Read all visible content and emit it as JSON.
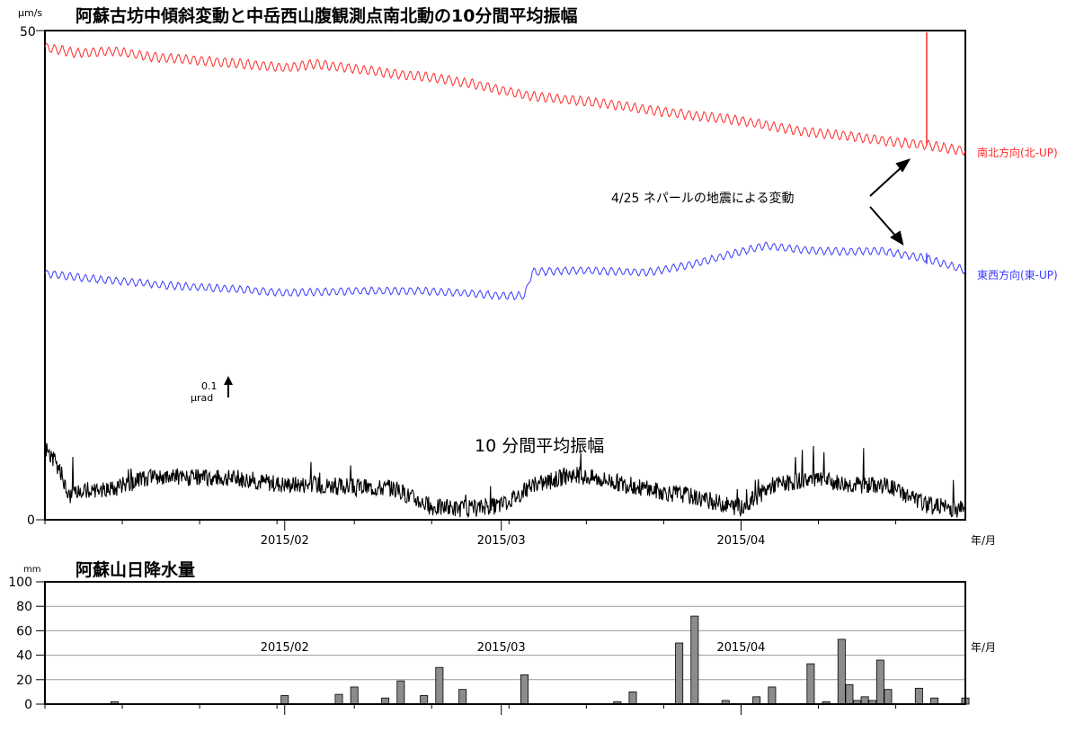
{
  "colors": {
    "ns": "#ff2a2a",
    "ew": "#3a3aff",
    "amp": "#000000",
    "bar_fill": "#8c8c8c",
    "grid": "#999999"
  },
  "chart_data": [
    {
      "type": "line",
      "title": "阿蘇古坊中傾斜変動と中岳西山腹観測点南北動の10分間平均振幅",
      "unit_label": "μm/s",
      "ylim": [
        0,
        50
      ],
      "y_ticks": [
        "50",
        "0"
      ],
      "x_ticks": [
        "2015/02",
        "2015/03",
        "2015/04"
      ],
      "x_unit": "年/月",
      "x_range": [
        "2015-01-01",
        "2015-04-30"
      ],
      "grid": false,
      "series": [
        {
          "name": "南北方向(北-UP)",
          "axis": "tilt",
          "x": [
            "2015-01-01",
            "2015-01-05",
            "2015-01-10",
            "2015-01-15",
            "2015-01-20",
            "2015-01-25",
            "2015-02-01",
            "2015-02-05",
            "2015-02-10",
            "2015-02-15",
            "2015-02-20",
            "2015-02-25",
            "2015-03-01",
            "2015-03-05",
            "2015-03-10",
            "2015-03-15",
            "2015-03-20",
            "2015-03-25",
            "2015-04-01",
            "2015-04-05",
            "2015-04-10",
            "2015-04-15",
            "2015-04-20",
            "2015-04-25",
            "2015-04-30"
          ],
          "y": [
            48.3,
            47.7,
            47.9,
            47.3,
            47.0,
            46.7,
            46.2,
            46.6,
            46.1,
            45.6,
            45.2,
            44.6,
            43.9,
            43.3,
            42.9,
            42.5,
            41.9,
            41.4,
            40.8,
            40.2,
            39.6,
            39.2,
            38.7,
            38.3,
            37.7
          ]
        },
        {
          "name": "東西方向(東-UP)",
          "axis": "tilt",
          "x": [
            "2015-01-01",
            "2015-01-06",
            "2015-01-12",
            "2015-01-18",
            "2015-01-25",
            "2015-02-01",
            "2015-02-06",
            "2015-02-12",
            "2015-02-18",
            "2015-02-24",
            "2015-03-01",
            "2015-03-04",
            "2015-03-05",
            "2015-03-10",
            "2015-03-15",
            "2015-03-20",
            "2015-03-25",
            "2015-03-30",
            "2015-04-04",
            "2015-04-09",
            "2015-04-14",
            "2015-04-19",
            "2015-04-25",
            "2015-04-30"
          ],
          "y": [
            25.2,
            24.7,
            24.3,
            23.9,
            23.6,
            23.2,
            23.3,
            23.4,
            23.4,
            23.2,
            22.9,
            22.9,
            25.3,
            25.5,
            25.4,
            25.3,
            26.0,
            27.0,
            28.0,
            27.6,
            27.4,
            27.5,
            26.7,
            25.5
          ]
        },
        {
          "name": "10 分間平均振幅",
          "axis": "amp",
          "x": [
            "2015-01-01",
            "2015-01-03",
            "2015-01-04",
            "2015-01-06",
            "2015-01-10",
            "2015-01-15",
            "2015-01-20",
            "2015-01-25",
            "2015-02-01",
            "2015-02-05",
            "2015-02-10",
            "2015-02-15",
            "2015-02-20",
            "2015-02-25",
            "2015-03-01",
            "2015-03-05",
            "2015-03-10",
            "2015-03-15",
            "2015-03-20",
            "2015-03-25",
            "2015-04-01",
            "2015-04-05",
            "2015-04-10",
            "2015-04-15",
            "2015-04-20",
            "2015-04-25",
            "2015-04-30"
          ],
          "y": [
            7.5,
            5.0,
            2.5,
            3.0,
            3.2,
            4.5,
            4.3,
            4.3,
            3.6,
            3.6,
            3.3,
            3.2,
            1.3,
            1.1,
            1.5,
            3.4,
            4.6,
            4.0,
            3.1,
            2.5,
            1.2,
            3.5,
            4.2,
            3.6,
            3.5,
            1.5,
            1.0
          ]
        }
      ],
      "annotations": {
        "event": "4/25 ネパールの地震による変動",
        "event_date": "2015-04-25",
        "scale_value": "0.1",
        "scale_unit": "μrad",
        "amp_label": "10 分間平均振幅"
      }
    },
    {
      "type": "bar",
      "title": "阿蘇山日降水量",
      "unit_label": "mm",
      "ylim": [
        0,
        100
      ],
      "y_ticks": [
        "100",
        "80",
        "60",
        "40",
        "20",
        "0"
      ],
      "x_ticks": [
        "2015/02",
        "2015/03",
        "2015/04"
      ],
      "x_unit": "年/月",
      "grid": true,
      "categories": [
        "2015-01-10",
        "2015-02-01",
        "2015-02-08",
        "2015-02-10",
        "2015-02-14",
        "2015-02-16",
        "2015-02-19",
        "2015-02-21",
        "2015-02-24",
        "2015-03-04",
        "2015-03-16",
        "2015-03-18",
        "2015-03-24",
        "2015-03-26",
        "2015-03-30",
        "2015-04-03",
        "2015-04-05",
        "2015-04-10",
        "2015-04-12",
        "2015-04-14",
        "2015-04-15",
        "2015-04-16",
        "2015-04-17",
        "2015-04-18",
        "2015-04-19",
        "2015-04-20",
        "2015-04-24",
        "2015-04-26",
        "2015-04-30"
      ],
      "values": [
        2,
        7,
        8,
        14,
        5,
        19,
        7,
        30,
        12,
        24,
        2,
        10,
        50,
        72,
        3,
        6,
        14,
        33,
        2,
        53,
        16,
        3,
        6,
        3,
        36,
        12,
        13,
        5,
        5
      ]
    }
  ]
}
